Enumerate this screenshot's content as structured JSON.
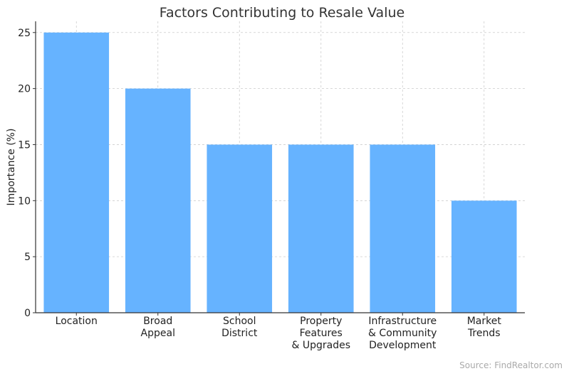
{
  "chart_data": {
    "type": "bar",
    "title": "Factors Contributing to Resale Value",
    "xlabel": "",
    "ylabel": "Importance (%)",
    "categories": [
      [
        "Location"
      ],
      [
        "Broad",
        "Appeal"
      ],
      [
        "School",
        "District"
      ],
      [
        "Property",
        "Features",
        "& Upgrades"
      ],
      [
        "Infrastructure",
        "& Community",
        "Development"
      ],
      [
        "Market",
        "Trends"
      ]
    ],
    "values": [
      25,
      20,
      15,
      15,
      15,
      10
    ],
    "ylim": [
      0,
      26
    ],
    "yticks": [
      0,
      5,
      10,
      15,
      20,
      25
    ],
    "grid": true,
    "bar_color": "#66b3ff"
  },
  "source": "Source: FindRealtor.com"
}
